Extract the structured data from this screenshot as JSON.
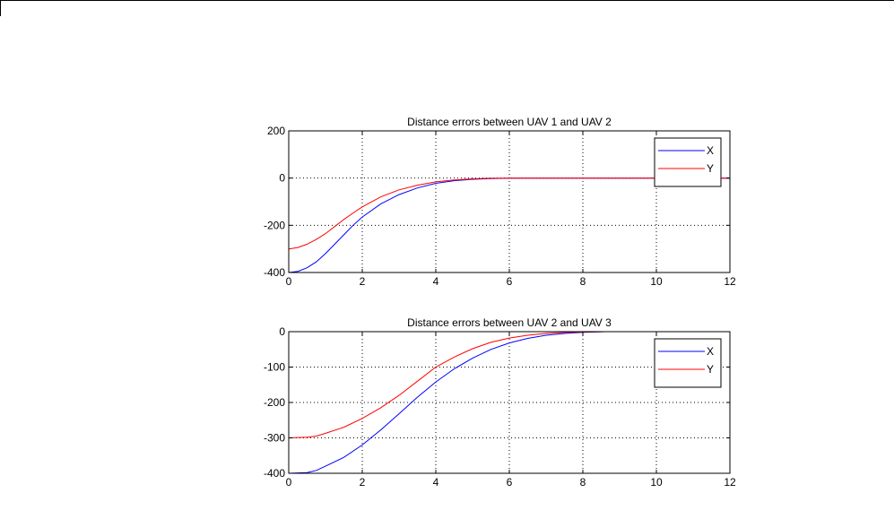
{
  "colors": {
    "series_x": "#0000ff",
    "series_y": "#ff0000",
    "axes": "#000000",
    "background": "#ffffff"
  },
  "chart_data": [
    {
      "type": "line",
      "title": "Distance errors between UAV 1 and UAV 2",
      "xlabel": "",
      "ylabel": "",
      "xlim": [
        0,
        12
      ],
      "ylim": [
        -400,
        200
      ],
      "xticks": [
        0,
        2,
        4,
        6,
        8,
        10,
        12
      ],
      "yticks": [
        -400,
        -200,
        0,
        200
      ],
      "grid": true,
      "legend_position": "top-right",
      "series": [
        {
          "name": "X",
          "color": "#0000ff",
          "x": [
            0,
            0.25,
            0.5,
            0.75,
            1,
            1.25,
            1.5,
            1.75,
            2,
            2.5,
            3,
            3.5,
            4,
            4.5,
            5,
            5.5,
            6,
            6.5,
            7,
            8,
            9,
            10,
            11,
            12
          ],
          "y": [
            -400,
            -395,
            -380,
            -355,
            -320,
            -280,
            -240,
            -200,
            -165,
            -110,
            -70,
            -42,
            -22,
            -11,
            -5,
            -2,
            0,
            0,
            0,
            0,
            0,
            0,
            0,
            0
          ]
        },
        {
          "name": "Y",
          "color": "#ff0000",
          "x": [
            0,
            0.25,
            0.5,
            0.75,
            1,
            1.25,
            1.5,
            1.75,
            2,
            2.5,
            3,
            3.5,
            4,
            4.5,
            5,
            5.5,
            6,
            6.5,
            7,
            8,
            9,
            10,
            11,
            12
          ],
          "y": [
            -300,
            -294,
            -280,
            -260,
            -235,
            -205,
            -175,
            -148,
            -122,
            -80,
            -50,
            -30,
            -16,
            -8,
            -3,
            -1,
            0,
            0,
            0,
            0,
            0,
            0,
            0,
            0
          ]
        }
      ]
    },
    {
      "type": "line",
      "title": "Distance errors between UAV 2 and UAV 3",
      "xlabel": "",
      "ylabel": "",
      "xlim": [
        0,
        12
      ],
      "ylim": [
        -400,
        0
      ],
      "xticks": [
        0,
        2,
        4,
        6,
        8,
        10,
        12
      ],
      "yticks": [
        -400,
        -300,
        -200,
        -100,
        0
      ],
      "grid": true,
      "legend_position": "top-right",
      "series": [
        {
          "name": "X",
          "color": "#0000ff",
          "x": [
            0,
            0.5,
            0.75,
            1,
            1.5,
            2,
            2.5,
            3,
            3.5,
            4,
            4.5,
            5,
            5.5,
            6,
            6.5,
            7,
            7.5,
            8,
            8.6
          ],
          "y": [
            -400,
            -398,
            -392,
            -380,
            -355,
            -320,
            -278,
            -232,
            -185,
            -142,
            -105,
            -75,
            -50,
            -32,
            -19,
            -10,
            -5,
            -2,
            0
          ]
        },
        {
          "name": "Y",
          "color": "#ff0000",
          "x": [
            0,
            0.5,
            0.75,
            1,
            1.5,
            2,
            2.5,
            3,
            3.5,
            4,
            4.5,
            5,
            5.5,
            6,
            6.5,
            7,
            7.5,
            8,
            8.6
          ],
          "y": [
            -300,
            -298,
            -295,
            -287,
            -270,
            -245,
            -215,
            -180,
            -140,
            -100,
            -72,
            -48,
            -30,
            -18,
            -10,
            -5,
            -2,
            -1,
            0
          ]
        }
      ]
    }
  ]
}
